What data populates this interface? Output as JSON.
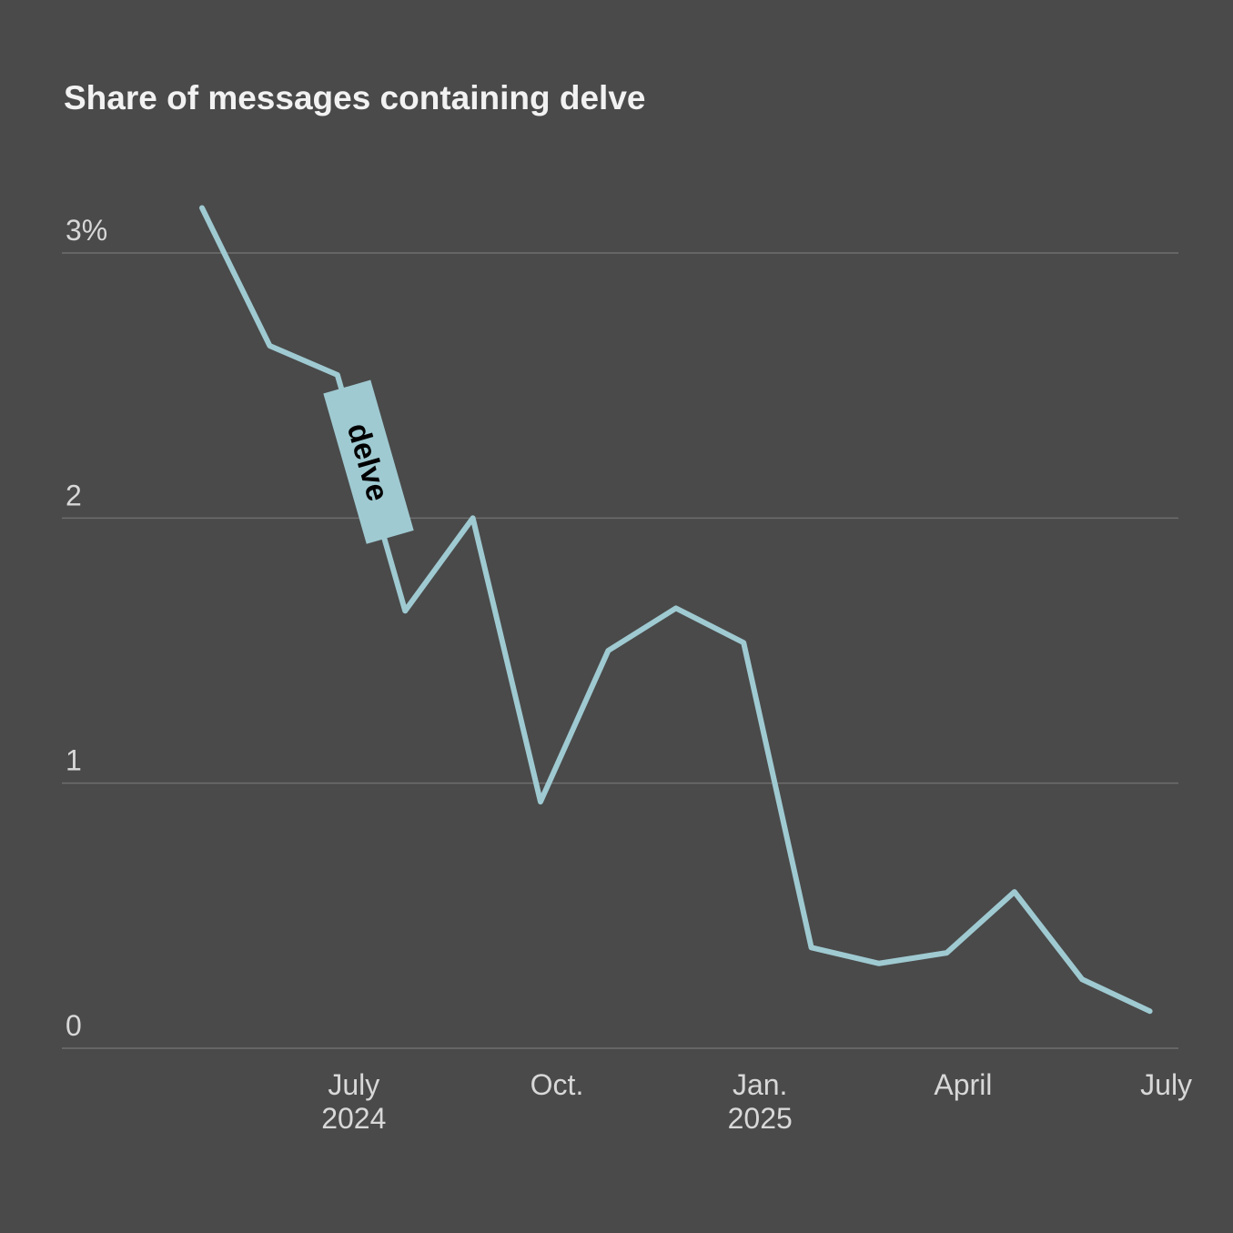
{
  "chart_data": {
    "type": "line",
    "title": "Share of messages containing delve",
    "x": [
      "2024-05",
      "2024-06",
      "2024-07",
      "2024-08",
      "2024-09",
      "2024-10",
      "2024-11",
      "2024-12",
      "2025-01",
      "2025-02",
      "2025-03",
      "2025-04",
      "2025-05",
      "2025-06",
      "2025-07"
    ],
    "series": [
      {
        "name": "delve",
        "color": "#9fcad2",
        "values": [
          3.17,
          2.65,
          2.54,
          1.65,
          2.0,
          0.93,
          1.5,
          1.66,
          1.53,
          0.38,
          0.32,
          0.36,
          0.59,
          0.26,
          0.14
        ]
      }
    ],
    "xticks": [
      {
        "value": "2024-07",
        "label": "July",
        "year": "2024"
      },
      {
        "value": "2024-10",
        "label": "Oct."
      },
      {
        "value": "2025-01",
        "label": "Jan.",
        "year": "2025"
      },
      {
        "value": "2025-04",
        "label": "April"
      },
      {
        "value": "2025-07",
        "label": "July"
      }
    ],
    "ylim": [
      0,
      3.2
    ],
    "yticks": [
      0,
      1,
      2,
      {
        "value": 3,
        "label": "3%"
      }
    ],
    "grid": true
  }
}
